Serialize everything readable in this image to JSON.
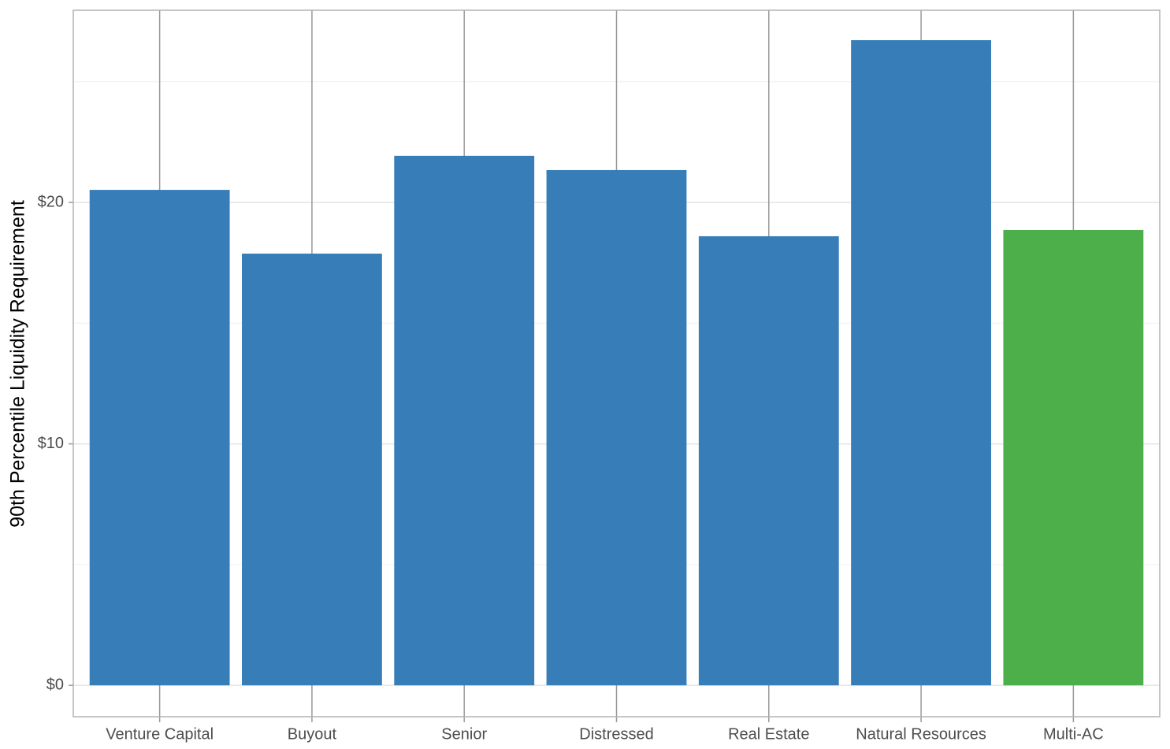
{
  "chart_data": {
    "type": "bar",
    "y_label": "90th Percentile Liquidity Requirement",
    "categories": [
      "Venture Capital",
      "Buyout",
      "Senior",
      "Distressed",
      "Real Estate",
      "Natural Resources",
      "Multi-AC"
    ],
    "values": [
      20.52,
      17.88,
      21.93,
      21.34,
      18.6,
      26.72,
      18.86
    ],
    "colors": [
      "#377eb8",
      "#377eb8",
      "#377eb8",
      "#377eb8",
      "#377eb8",
      "#377eb8",
      "#4daf4a"
    ],
    "ylim": [
      -1.3,
      27.96
    ],
    "yticks": [
      {
        "value": 0,
        "label": "$0"
      },
      {
        "value": 10,
        "label": "$10"
      },
      {
        "value": 20,
        "label": "$20"
      }
    ],
    "y_minor_grid": [
      5,
      15,
      25
    ],
    "grid": true
  }
}
